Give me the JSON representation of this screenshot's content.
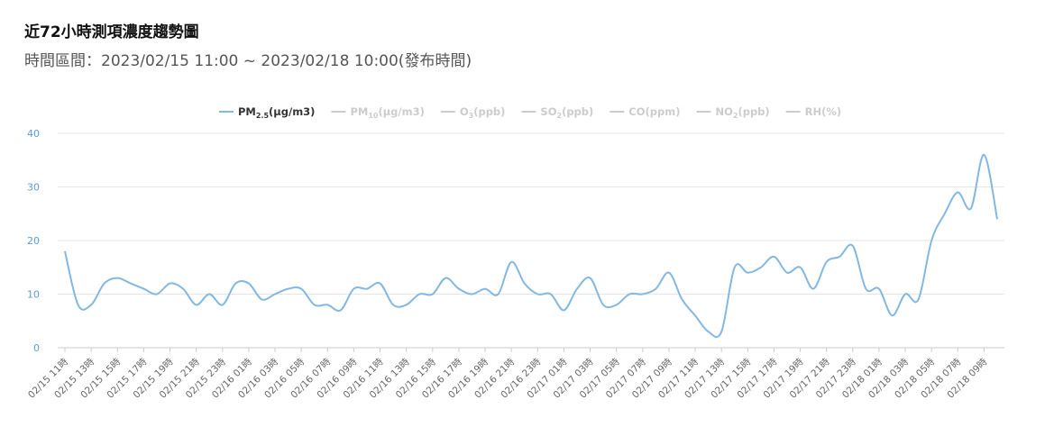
{
  "header": {
    "title": "近72小時測項濃度趨勢圖",
    "subtitle": "時間區間：2023/02/15 11:00 ~ 2023/02/18 10:00(發布時間)"
  },
  "chart_data": {
    "type": "line",
    "ylim": [
      0,
      40
    ],
    "yticks": [
      0,
      10,
      20,
      30,
      40
    ],
    "grid": true,
    "legend_position": "top-center",
    "colors": {
      "active": "#82b8e2",
      "inactive": "#cccccc",
      "active_text": "#333333",
      "inactive_text": "#cccccc"
    },
    "legend": [
      {
        "base": "PM",
        "sub": "2.5",
        "suffix": "(μg/m3)",
        "active": true
      },
      {
        "base": "PM",
        "sub": "10",
        "suffix": "(μg/m3)",
        "active": false
      },
      {
        "base": "O",
        "sub": "3",
        "suffix": "(ppb)",
        "active": false
      },
      {
        "base": "SO",
        "sub": "2",
        "suffix": "(ppb)",
        "active": false
      },
      {
        "base": "CO(ppm)",
        "sub": "",
        "suffix": "",
        "active": false
      },
      {
        "base": "NO",
        "sub": "2",
        "suffix": "(ppb)",
        "active": false
      },
      {
        "base": "RH(%)",
        "sub": "",
        "suffix": "",
        "active": false
      }
    ],
    "x": [
      "02/15 11時",
      "02/15 12時",
      "02/15 13時",
      "02/15 14時",
      "02/15 15時",
      "02/15 16時",
      "02/15 17時",
      "02/15 18時",
      "02/15 19時",
      "02/15 20時",
      "02/15 21時",
      "02/15 22時",
      "02/15 23時",
      "02/16 00時",
      "02/16 01時",
      "02/16 02時",
      "02/16 03時",
      "02/16 04時",
      "02/16 05時",
      "02/16 06時",
      "02/16 07時",
      "02/16 08時",
      "02/16 09時",
      "02/16 10時",
      "02/16 11時",
      "02/16 12時",
      "02/16 13時",
      "02/16 14時",
      "02/16 15時",
      "02/16 16時",
      "02/16 17時",
      "02/16 18時",
      "02/16 19時",
      "02/16 20時",
      "02/16 21時",
      "02/16 22時",
      "02/16 23時",
      "02/17 00時",
      "02/17 01時",
      "02/17 02時",
      "02/17 03時",
      "02/17 04時",
      "02/17 05時",
      "02/17 06時",
      "02/17 07時",
      "02/17 08時",
      "02/17 09時",
      "02/17 10時",
      "02/17 11時",
      "02/17 12時",
      "02/17 13時",
      "02/17 14時",
      "02/17 15時",
      "02/17 16時",
      "02/17 17時",
      "02/17 18時",
      "02/17 19時",
      "02/17 20時",
      "02/17 21時",
      "02/17 22時",
      "02/17 23時",
      "02/18 00時",
      "02/18 01時",
      "02/18 02時",
      "02/18 03時",
      "02/18 04時",
      "02/18 05時",
      "02/18 06時",
      "02/18 07時",
      "02/18 08時",
      "02/18 09時",
      "02/18 10時"
    ],
    "xtick_labels": [
      "02/15 11時",
      "02/15 13時",
      "02/15 15時",
      "02/15 17時",
      "02/15 19時",
      "02/15 21時",
      "02/15 23時",
      "02/16 01時",
      "02/16 03時",
      "02/16 05時",
      "02/16 07時",
      "02/16 09時",
      "02/16 11時",
      "02/16 13時",
      "02/16 15時",
      "02/16 17時",
      "02/16 19時",
      "02/16 21時",
      "02/16 23時",
      "02/17 01時",
      "02/17 03時",
      "02/17 05時",
      "02/17 07時",
      "02/17 09時",
      "02/17 11時",
      "02/17 13時",
      "02/17 15時",
      "02/17 17時",
      "02/17 19時",
      "02/17 21時",
      "02/17 23時",
      "02/18 01時",
      "02/18 03時",
      "02/18 05時",
      "02/18 07時",
      "02/18 09時"
    ],
    "series": [
      {
        "values": [
          18,
          8,
          8,
          12,
          13,
          12,
          11,
          10,
          12,
          11,
          8,
          10,
          8,
          12,
          12,
          9,
          10,
          11,
          11,
          8,
          8,
          7,
          11,
          11,
          12,
          8,
          8,
          10,
          10,
          13,
          11,
          10,
          11,
          10,
          16,
          12,
          10,
          10,
          7,
          11,
          13,
          8,
          8,
          10,
          10,
          11,
          14,
          9,
          6,
          3,
          3,
          15,
          14,
          15,
          17,
          14,
          15,
          11,
          16,
          17,
          19,
          11,
          11,
          6,
          10,
          9,
          20,
          25,
          29,
          26,
          36,
          24
        ]
      }
    ]
  }
}
